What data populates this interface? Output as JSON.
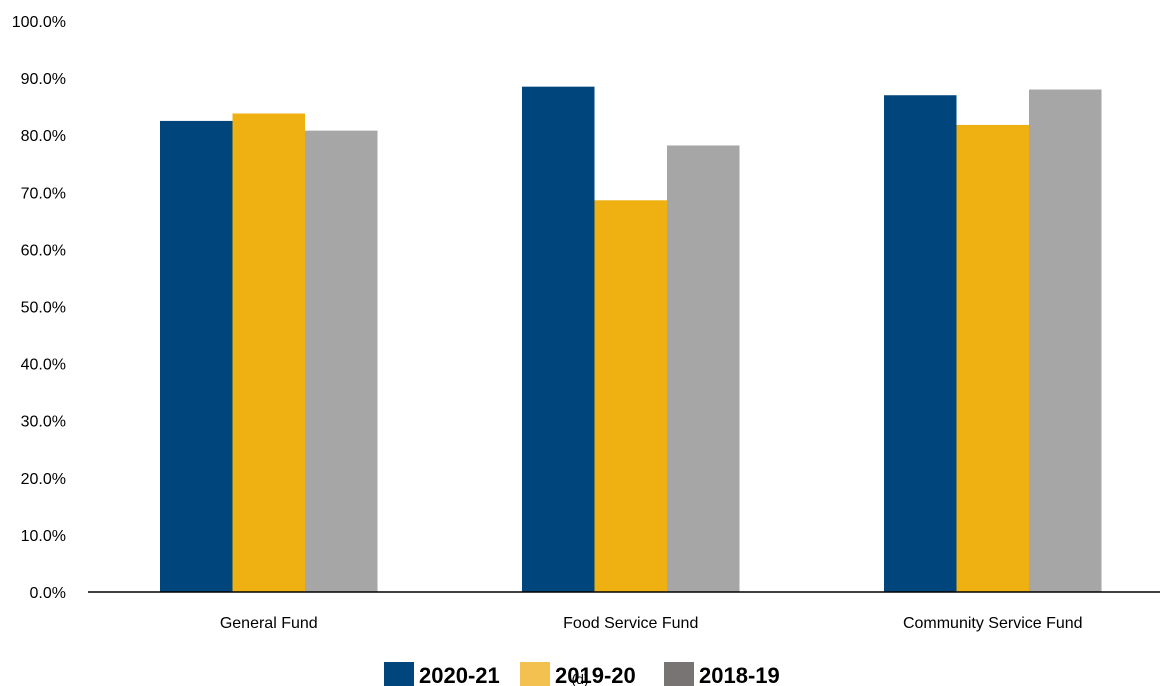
{
  "page_number": "(d)",
  "chart_data": {
    "type": "bar",
    "title": "",
    "xlabel": "",
    "ylabel": "",
    "categories": [
      "General Fund",
      "Food Service Fund",
      "Community Service Fund"
    ],
    "series": [
      {
        "name": "2020-21",
        "color": "#00457C",
        "values": [
          82.5,
          88.5,
          87.0
        ]
      },
      {
        "name": "2019-20",
        "color": "#EEB111",
        "values": [
          83.8,
          68.6,
          81.8
        ]
      },
      {
        "name": "2018-19",
        "color": "#A6A6A6",
        "values": [
          80.8,
          78.2,
          88.0
        ]
      }
    ],
    "ylim": [
      0,
      100
    ],
    "yticks": [
      "0.0%",
      "10.0%",
      "20.0%",
      "30.0%",
      "40.0%",
      "50.0%",
      "60.0%",
      "70.0%",
      "80.0%",
      "90.0%",
      "100.0%"
    ],
    "grid": false,
    "legend": {
      "position": "bottom",
      "entries": [
        {
          "label": "2020-21",
          "color": "#00457C"
        },
        {
          "label": "2019-20",
          "color": "#F3C14F"
        },
        {
          "label": "2018-19",
          "color": "#787474"
        }
      ]
    }
  }
}
